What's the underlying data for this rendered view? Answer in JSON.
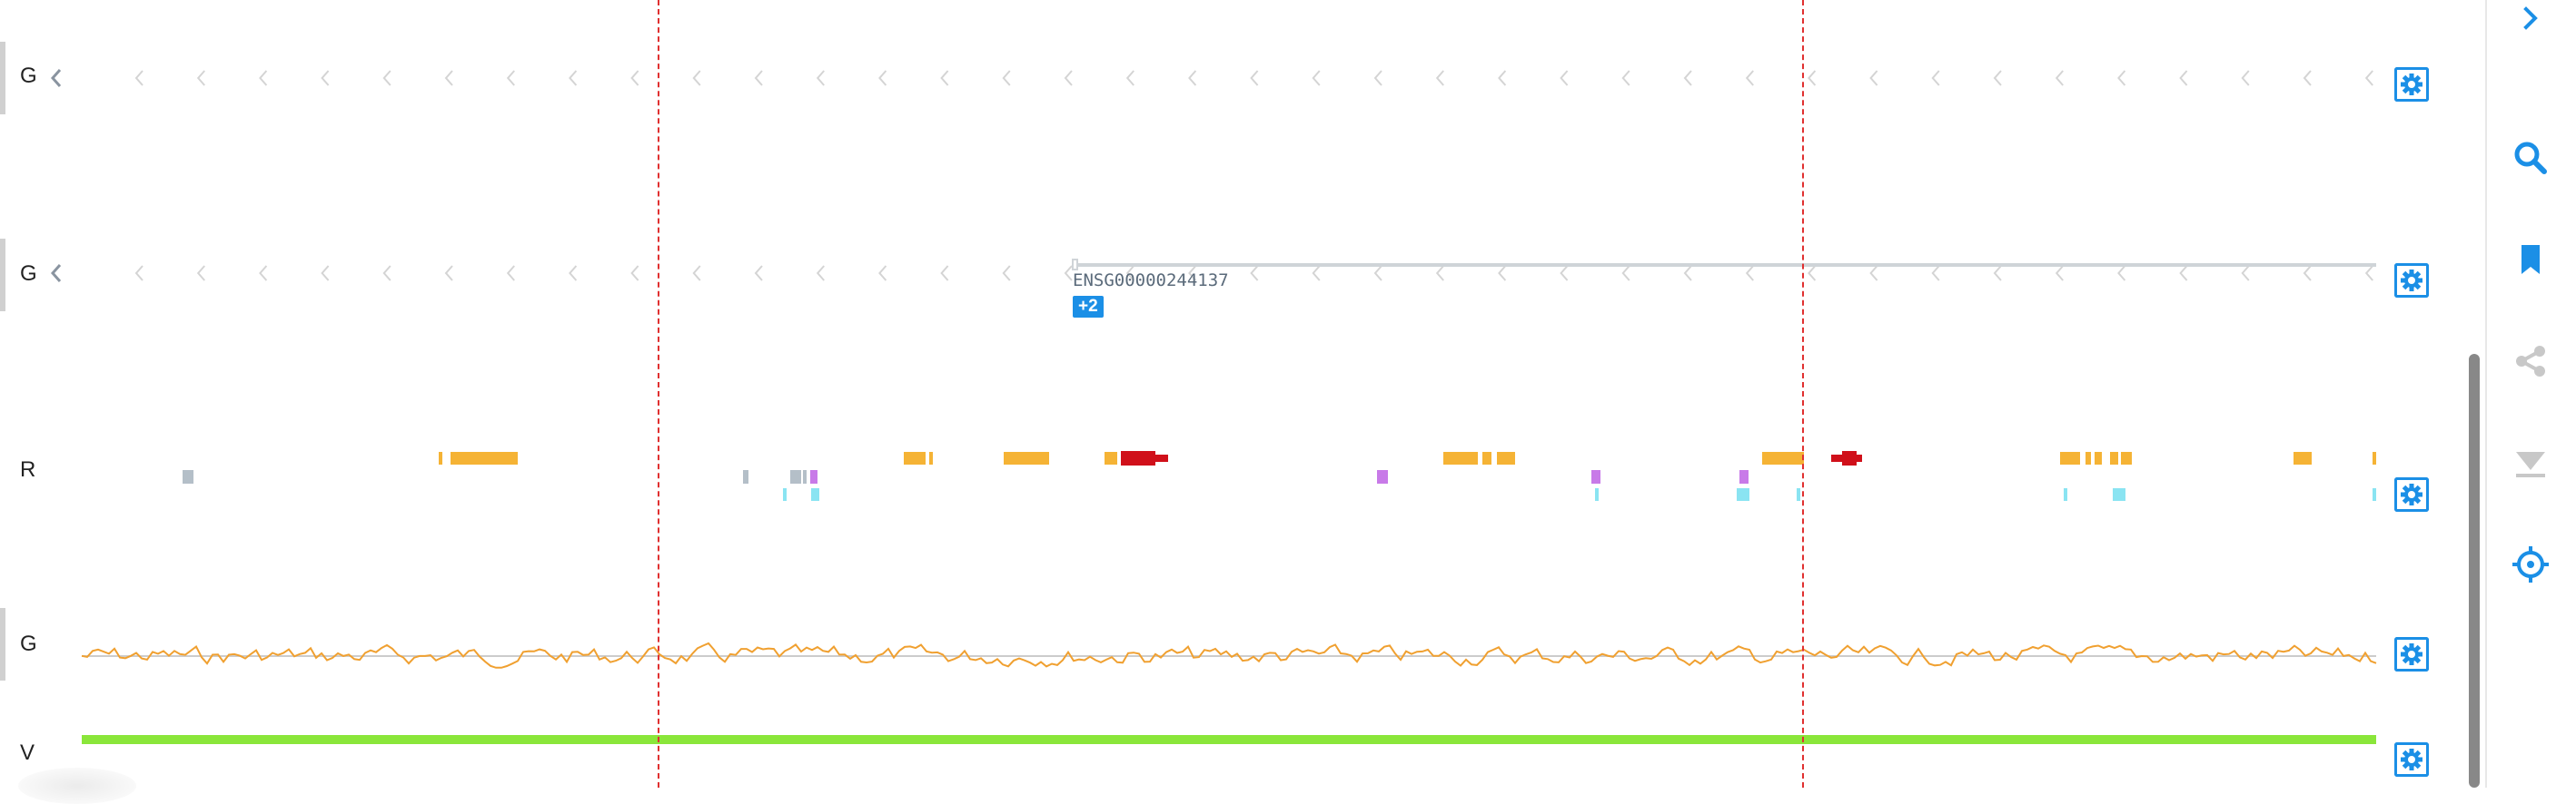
{
  "tracks": [
    {
      "id": "g1",
      "label": "G",
      "kind": "gene-reverse"
    },
    {
      "id": "g2",
      "label": "G",
      "kind": "gene-reverse-with-feature"
    },
    {
      "id": "r",
      "label": "R",
      "kind": "regulation"
    },
    {
      "id": "g3",
      "label": "G",
      "kind": "gc-content"
    },
    {
      "id": "v",
      "label": "V",
      "kind": "variation"
    }
  ],
  "gene_feature": {
    "name": "ENSG00000244137",
    "more_badge": "+2"
  },
  "colors": {
    "accent": "#1b8fe6",
    "guide_line": "#e03030",
    "chevron": "#d4d4d4",
    "regulation_orange": "#f5b335",
    "regulation_red": "#d0101a",
    "regulation_grey": "#b4bfc8",
    "regulation_purple": "#c87ae8",
    "regulation_cyan": "#8ae4f2",
    "gc_line": "#f0a030",
    "variation_bar": "#8ae63a"
  },
  "sidebar": {
    "items": [
      {
        "name": "expand-panel",
        "icon": "chevron-right-icon",
        "active": true
      },
      {
        "name": "search",
        "icon": "search-icon",
        "active": true
      },
      {
        "name": "bookmarks",
        "icon": "bookmark-icon",
        "active": true
      },
      {
        "name": "share",
        "icon": "share-icon",
        "active": false
      },
      {
        "name": "download",
        "icon": "download-icon",
        "active": false
      },
      {
        "name": "focus",
        "icon": "crosshair-icon",
        "active": true
      }
    ]
  }
}
